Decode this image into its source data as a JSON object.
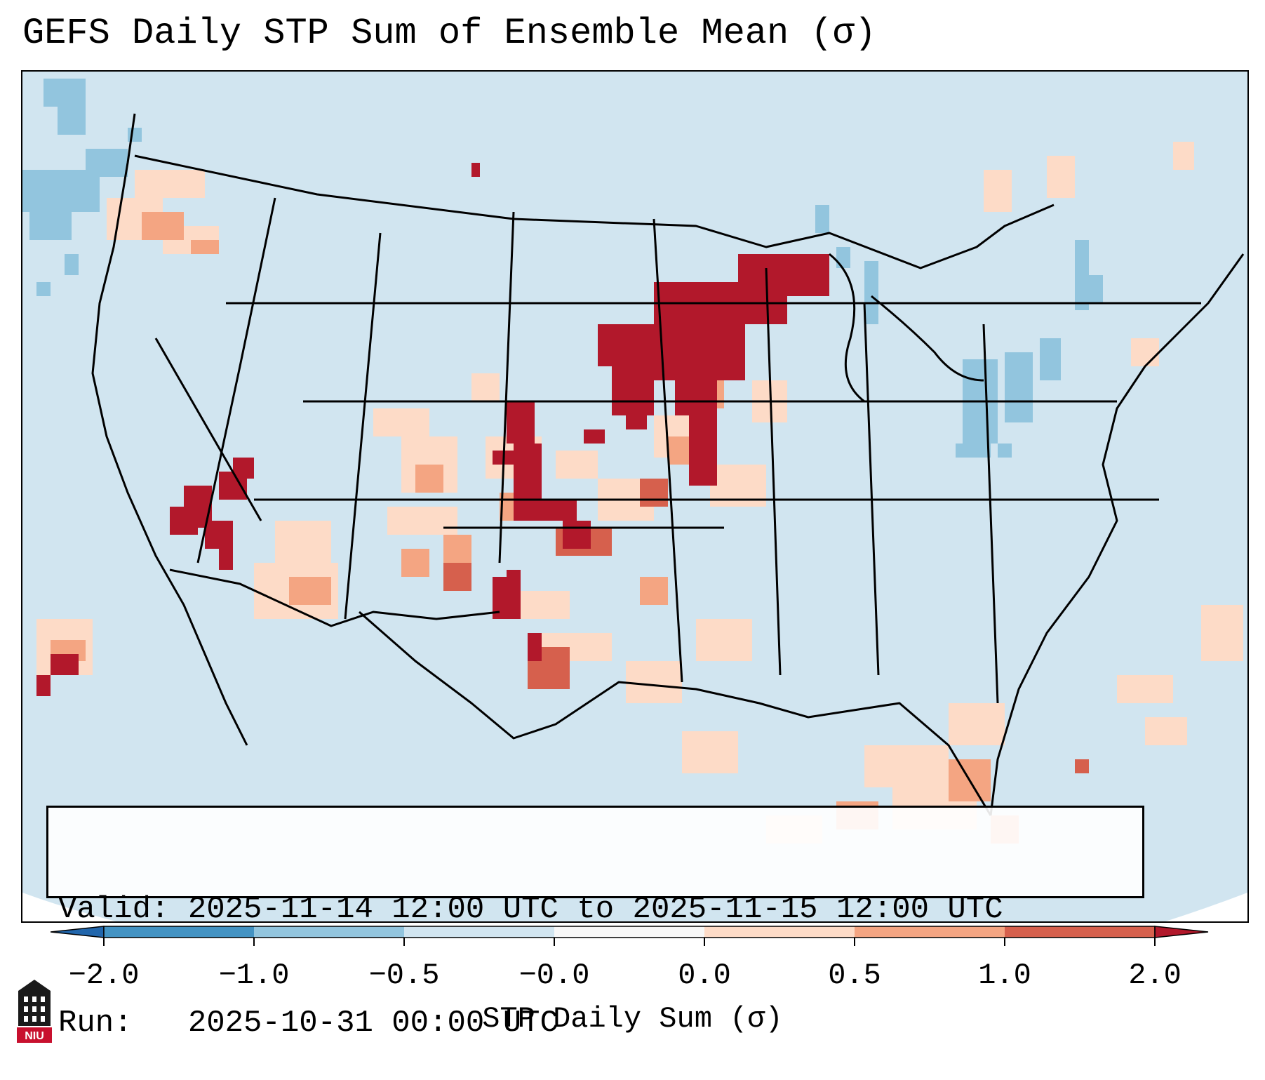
{
  "title": "GEFS Daily STP Sum of Ensemble Mean (σ)",
  "info": {
    "valid_line": "Valid: 2025-11-14 12:00 UTC to 2025-11-15 12:00 UTC",
    "run_line": "Run:   2025-10-31 00:00 UTC"
  },
  "colorbar": {
    "label": "STP Daily Sum (σ)",
    "ticks": [
      "−2.0",
      "−1.0",
      "−0.5",
      "−0.0",
      "0.0",
      "0.5",
      "1.0",
      "2.0"
    ],
    "colors": [
      "#4393c3",
      "#92c5de",
      "#d1e5f0",
      "#f7f7f7",
      "#fddbc7",
      "#f4a582",
      "#d6604d",
      "#b2182b"
    ],
    "under_color": "#2166ac",
    "over_color": "#b2182b"
  },
  "map": {
    "background_color": "#d1e5f0",
    "anomaly_regions": [
      {
        "region": "Iowa / Minnesota / Wisconsin",
        "level": "2.0"
      },
      {
        "region": "Kansas / Oklahoma / Colorado",
        "level": "2.0"
      },
      {
        "region": "Southern California / Nevada",
        "level": "2.0"
      },
      {
        "region": "West Texas",
        "level": "1.0"
      },
      {
        "region": "Pacific Northwest",
        "level": "0.5"
      },
      {
        "region": "Gulf of Mexico",
        "level": "0.5"
      },
      {
        "region": "Great Lakes / Northeast",
        "level": "−0.5"
      }
    ]
  },
  "logo": {
    "text": "NIU"
  }
}
